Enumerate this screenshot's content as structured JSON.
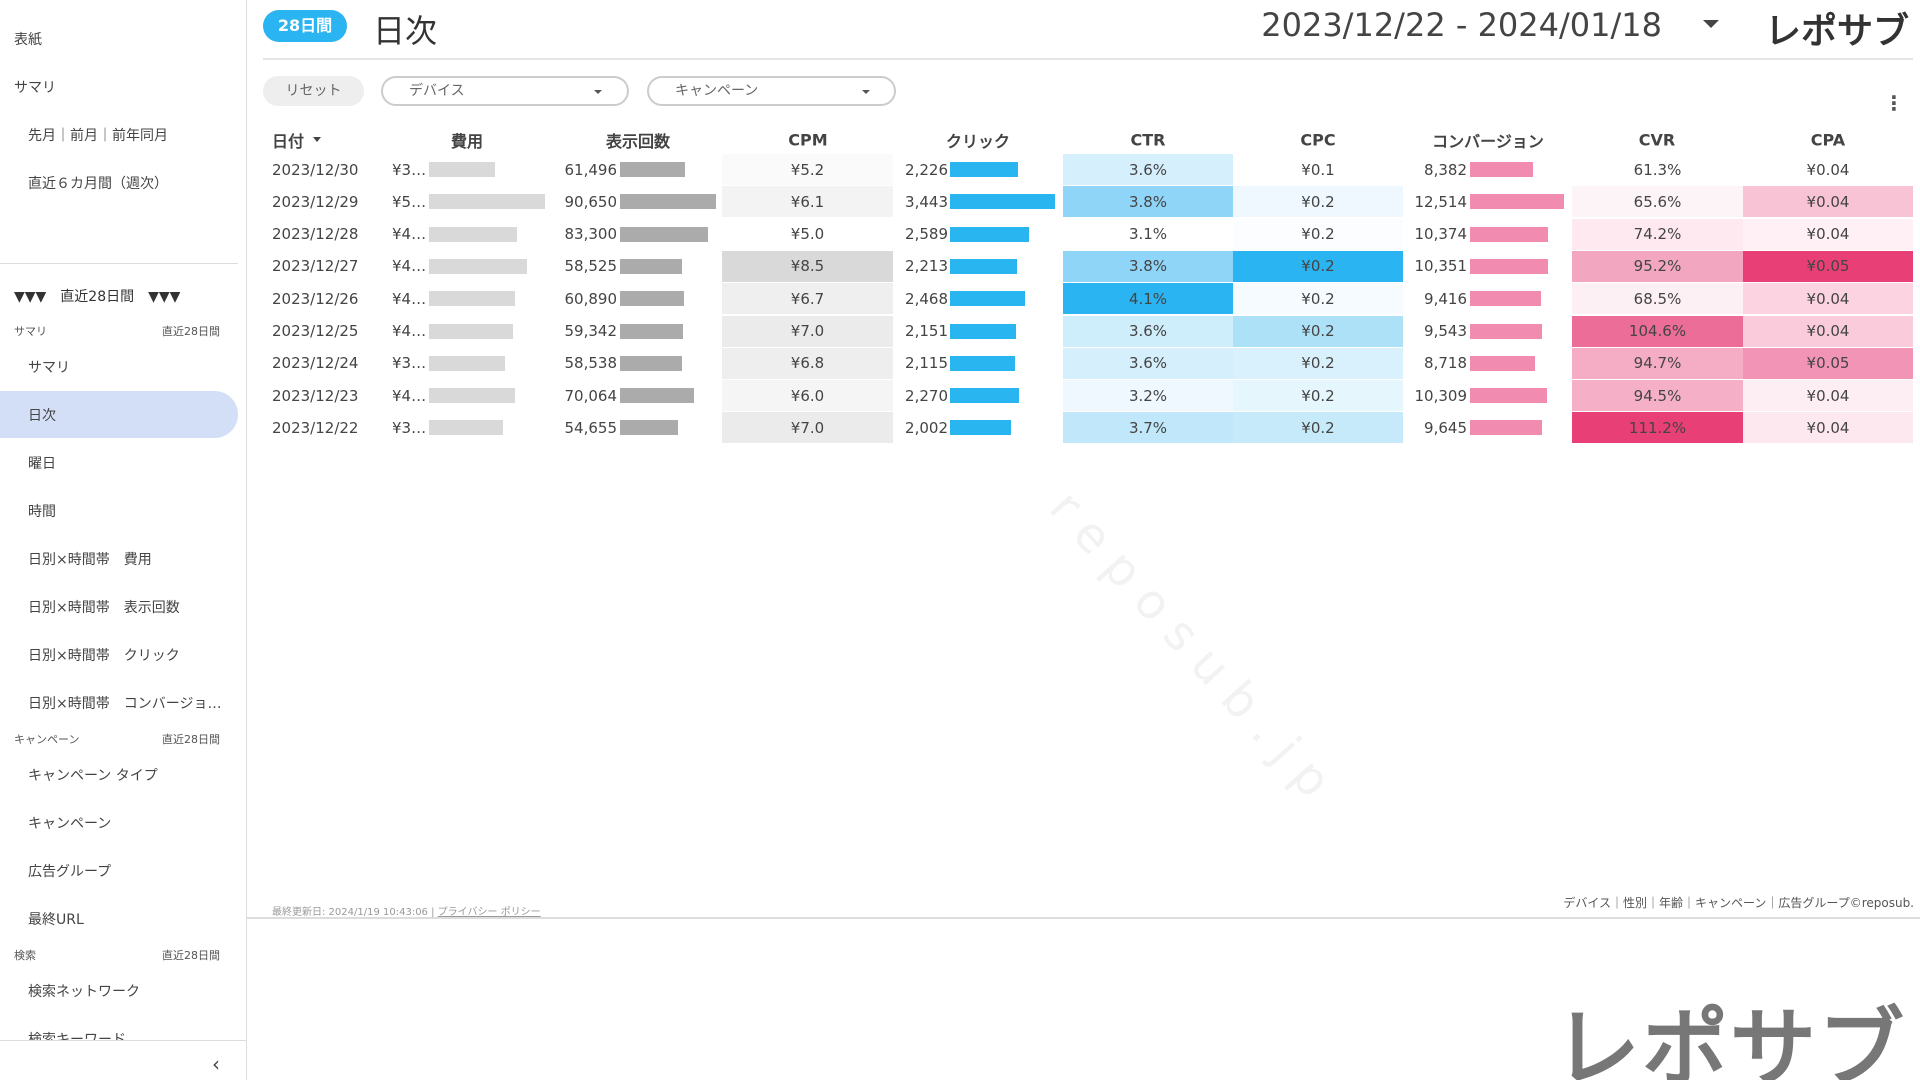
{
  "sidebar": {
    "top": [
      "表紙",
      "サマリ",
      "先月｜前月｜前年同月",
      "直近６カ月間（週次）"
    ],
    "period_banner": "▼▼▼　直近28日間　▼▼▼",
    "sections": [
      {
        "title": "サマリ",
        "period": "直近28日間",
        "items": [
          "サマリ",
          "日次",
          "曜日",
          "時間",
          "日別×時間帯　費用",
          "日別×時間帯　表示回数",
          "日別×時間帯　クリック",
          "日別×時間帯　コンバージョ…"
        ]
      },
      {
        "title": "キャンペーン",
        "period": "直近28日間",
        "items": [
          "キャンペーン タイプ",
          "キャンペーン",
          "広告グループ",
          "最終URL"
        ]
      },
      {
        "title": "検索",
        "period": "直近28日間",
        "items": [
          "検索ネットワーク",
          "検索キーワード"
        ]
      }
    ],
    "selected_section": 0,
    "selected_item": 1,
    "collapse": "‹"
  },
  "header": {
    "badge": "28日間",
    "title": "日次",
    "date_range": "2023/12/22 - 2024/01/18",
    "logo": "レポサブ"
  },
  "filters": {
    "reset": "リセット",
    "dropdowns": [
      "デバイス",
      "キャンペーン"
    ]
  },
  "table": {
    "columns": [
      "日付",
      "費用",
      "表示回数",
      "CPM",
      "クリック",
      "CTR",
      "CPC",
      "コンバージョン",
      "CVR",
      "CPA"
    ],
    "bar_colors": [
      "#d9d9d9",
      "#ababab",
      "#29b5f0",
      "#f28bb0"
    ],
    "rows": [
      {
        "cells": [
          "2023/12/30",
          {
            "value": 33000,
            "label": "¥3…"
          },
          {
            "value": 61496,
            "label": "61,496"
          },
          "¥5.2",
          {
            "value": 2226,
            "label": "2,226"
          },
          "3.6%",
          "¥0.1",
          {
            "value": 8382,
            "label": "8,382"
          },
          "61.3%",
          "¥0.04"
        ],
        "heat": [
          "#fafafa",
          "#d6effc",
          "#ffffff",
          "#ffffff",
          "#ffffff"
        ]
      },
      {
        "cells": [
          "2023/12/29",
          {
            "value": 58000,
            "label": "¥5…"
          },
          {
            "value": 90650,
            "label": "90,650"
          },
          "¥6.1",
          {
            "value": 3443,
            "label": "3,443"
          },
          "3.8%",
          "¥0.2",
          {
            "value": 12514,
            "label": "12,514"
          },
          "65.6%",
          "¥0.04"
        ],
        "heat": [
          "#f3f3f3",
          "#8fd5f8",
          "#eef8fe",
          "#fdf4f7",
          "#f8c3d5"
        ]
      },
      {
        "cells": [
          "2023/12/28",
          {
            "value": 44000,
            "label": "¥4…"
          },
          {
            "value": 83300,
            "label": "83,300"
          },
          "¥5.0",
          {
            "value": 2589,
            "label": "2,589"
          },
          "3.1%",
          "¥0.2",
          {
            "value": 10374,
            "label": "10,374"
          },
          "74.2%",
          "¥0.04"
        ],
        "heat": [
          "#ffffff",
          "#ffffff",
          "#fbfdff",
          "#fde9ef",
          "#fef0f4"
        ]
      },
      {
        "cells": [
          "2023/12/27",
          {
            "value": 49000,
            "label": "¥4…"
          },
          {
            "value": 58525,
            "label": "58,525"
          },
          "¥8.5",
          {
            "value": 2213,
            "label": "2,213"
          },
          "3.8%",
          "¥0.2",
          {
            "value": 10351,
            "label": "10,351"
          },
          "95.2%",
          "¥0.05"
        ],
        "heat": [
          "#d9d9d9",
          "#8fd5f8",
          "#2ab4f2",
          "#f3a6c0",
          "#e93f77"
        ]
      },
      {
        "cells": [
          "2023/12/26",
          {
            "value": 43000,
            "label": "¥4…"
          },
          {
            "value": 60890,
            "label": "60,890"
          },
          "¥6.7",
          {
            "value": 2468,
            "label": "2,468"
          },
          "4.1%",
          "¥0.2",
          {
            "value": 9416,
            "label": "9,416"
          },
          "68.5%",
          "¥0.04"
        ],
        "heat": [
          "#efefef",
          "#2ab4f2",
          "#f5fbfe",
          "#fdf0f4",
          "#fbd3e1"
        ]
      },
      {
        "cells": [
          "2023/12/25",
          {
            "value": 42000,
            "label": "¥4…"
          },
          {
            "value": 59342,
            "label": "59,342"
          },
          "¥7.0",
          {
            "value": 2151,
            "label": "2,151"
          },
          "3.6%",
          "¥0.2",
          {
            "value": 9543,
            "label": "9,543"
          },
          "104.6%",
          "¥0.04"
        ],
        "heat": [
          "#ebebeb",
          "#cfeefb",
          "#ade1f8",
          "#ec6d98",
          "#f9cbdb"
        ]
      },
      {
        "cells": [
          "2023/12/24",
          {
            "value": 38000,
            "label": "¥3…"
          },
          {
            "value": 58538,
            "label": "58,538"
          },
          "¥6.8",
          {
            "value": 2115,
            "label": "2,115"
          },
          "3.6%",
          "¥0.2",
          {
            "value": 8718,
            "label": "8,718"
          },
          "94.7%",
          "¥0.05"
        ],
        "heat": [
          "#eeeeee",
          "#d6effc",
          "#d9f1fc",
          "#f4adc5",
          "#f194b5"
        ]
      },
      {
        "cells": [
          "2023/12/23",
          {
            "value": 43000,
            "label": "¥4…"
          },
          {
            "value": 70064,
            "label": "70,064"
          },
          "¥6.0",
          {
            "value": 2270,
            "label": "2,270"
          },
          "3.2%",
          "¥0.2",
          {
            "value": 10309,
            "label": "10,309"
          },
          "94.5%",
          "¥0.04"
        ],
        "heat": [
          "#f5f5f5",
          "#eef8fe",
          "#e6f6fd",
          "#f5b0c7",
          "#fdeef3"
        ]
      },
      {
        "cells": [
          "2023/12/22",
          {
            "value": 37000,
            "label": "¥3…"
          },
          {
            "value": 54655,
            "label": "54,655"
          },
          "¥7.0",
          {
            "value": 2002,
            "label": "2,002"
          },
          "3.7%",
          "¥0.2",
          {
            "value": 9645,
            "label": "9,645"
          },
          "111.2%",
          "¥0.04"
        ],
        "heat": [
          "#ebebeb",
          "#c0e8fa",
          "#c6eafa",
          "#e93f77",
          "#fde8ef"
        ]
      }
    ]
  },
  "footer": {
    "updated": "最終更新日: 2024/1/19 10:43:06",
    "privacy": "プライバシー ポリシー",
    "links": "デバイス｜性別｜年齢｜キャンペーン｜広告グループ©reposub."
  },
  "watermark": "r e p o s u b . j p",
  "brand_mark": "レポサブ"
}
